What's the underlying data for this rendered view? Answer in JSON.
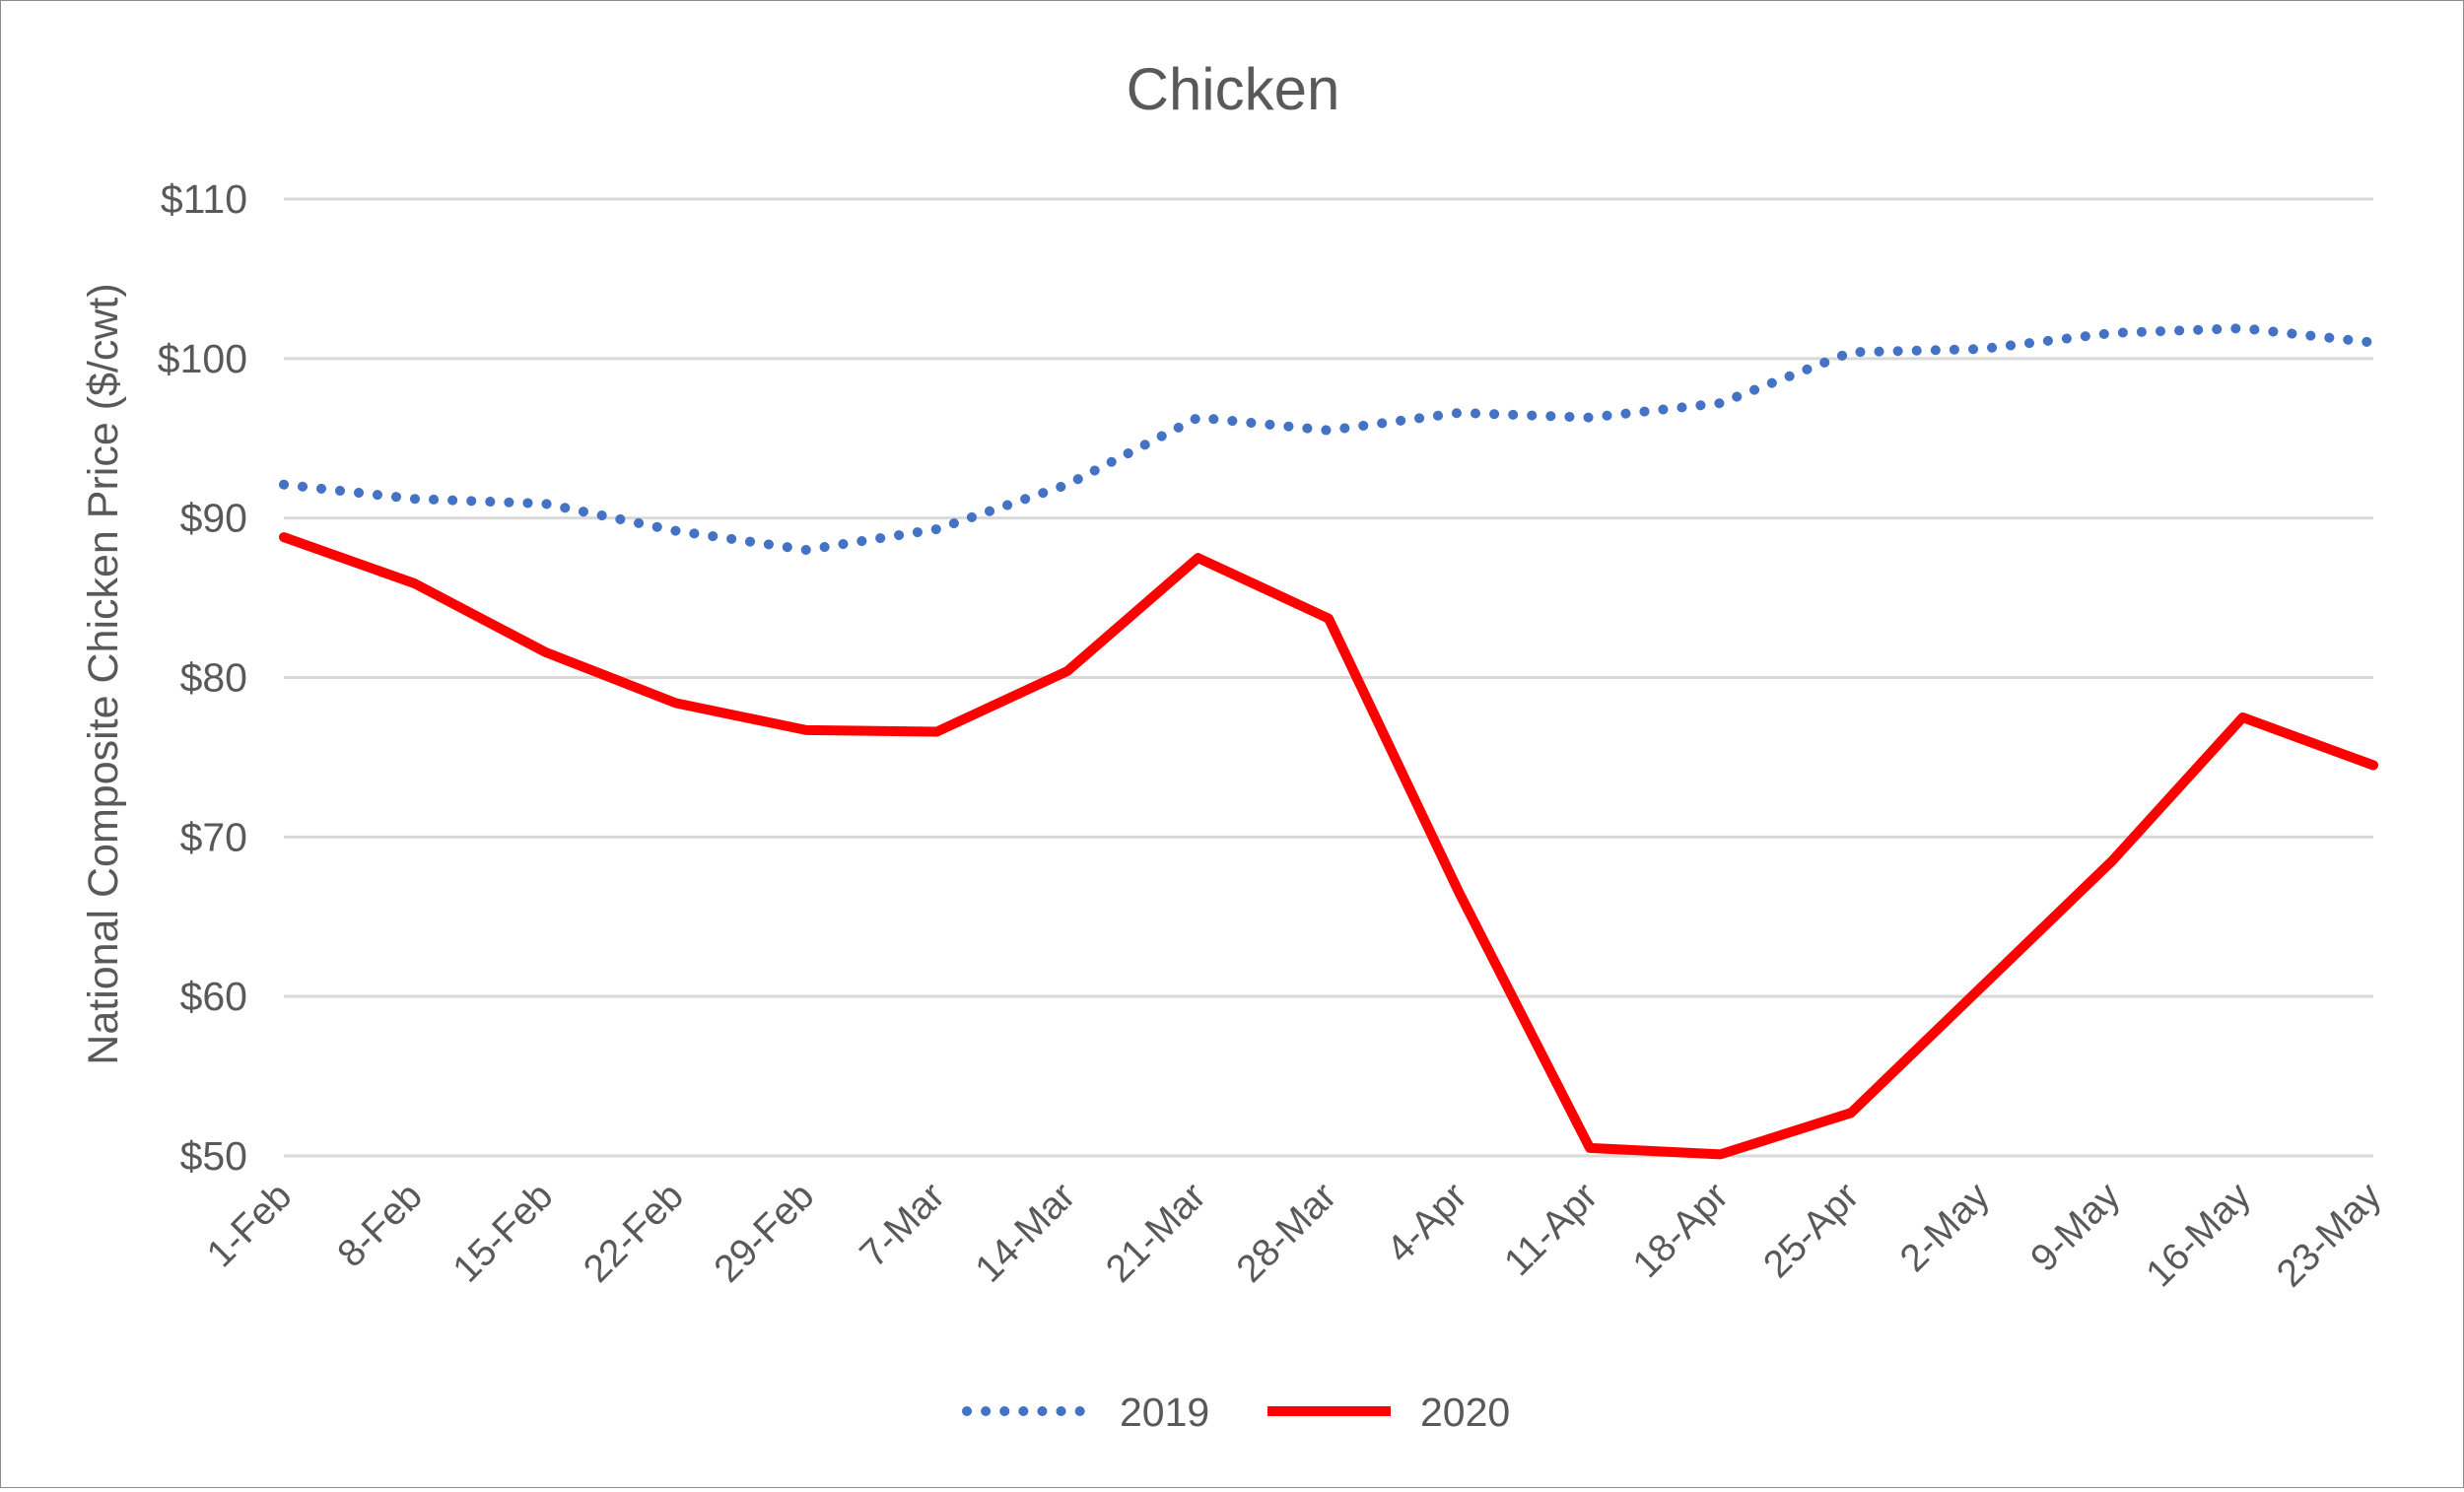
{
  "chart_data": {
    "type": "line",
    "title": "Chicken",
    "xlabel": "",
    "ylabel": "National Composite Chicken Price ($/cwt)",
    "categories": [
      "1-Feb",
      "8-Feb",
      "15-Feb",
      "22-Feb",
      "29-Feb",
      "7-Mar",
      "14-Mar",
      "21-Mar",
      "28-Mar",
      "4-Apr",
      "11-Apr",
      "18-Apr",
      "25-Apr",
      "2-May",
      "9-May",
      "16-May",
      "23-May"
    ],
    "ylim": [
      50,
      110
    ],
    "yticks": [
      50,
      60,
      70,
      80,
      90,
      100,
      110
    ],
    "ytick_labels": [
      "$50",
      "$60",
      "$70",
      "$80",
      "$90",
      "$100",
      "$110"
    ],
    "grid": true,
    "legend_position": "bottom",
    "series": [
      {
        "name": "2019",
        "color": "#4472C4",
        "style": "dotted",
        "values": [
          92.1,
          91.2,
          90.9,
          89.2,
          88.0,
          89.3,
          92.1,
          96.3,
          95.5,
          96.6,
          96.3,
          97.2,
          100.4,
          100.6,
          101.6,
          101.9,
          101.0
        ]
      },
      {
        "name": "2020",
        "color": "#FF0000",
        "style": "solid",
        "values": [
          88.8,
          85.9,
          81.6,
          78.4,
          76.7,
          76.6,
          80.4,
          87.5,
          83.7,
          66.5,
          50.5,
          50.1,
          52.7,
          60.6,
          68.5,
          77.5,
          74.5
        ]
      }
    ]
  }
}
